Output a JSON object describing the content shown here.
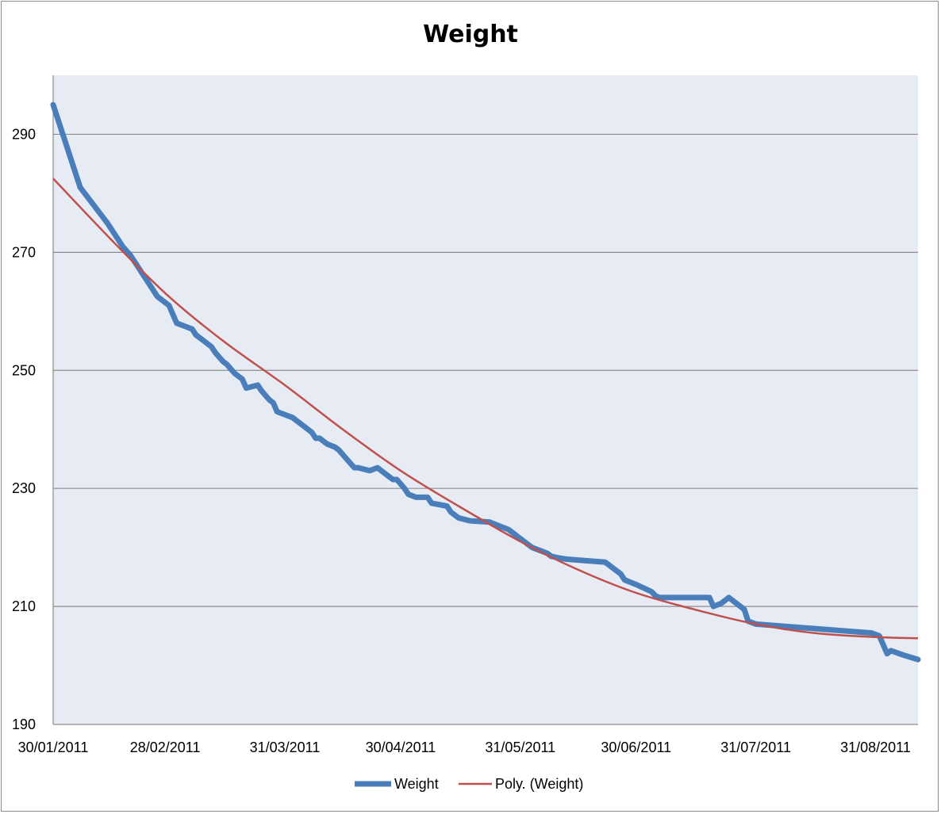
{
  "chart_data": {
    "type": "line",
    "title": "Weight",
    "xlabel": "",
    "ylabel": "",
    "x_tick_labels": [
      "30/01/2011",
      "28/02/2011",
      "31/03/2011",
      "30/04/2011",
      "31/05/2011",
      "30/06/2011",
      "31/07/2011",
      "31/08/2011"
    ],
    "y_tick_labels": [
      "190",
      "210",
      "230",
      "250",
      "270",
      "290"
    ],
    "ylim": [
      190,
      300
    ],
    "xlim": [
      "2011-01-30",
      "2011-09-11"
    ],
    "grid": "horizontal",
    "legend_position": "bottom",
    "colors": {
      "weight": "#4a7ebb",
      "trend": "#c0504d",
      "plot_bg": "#e7ecf4",
      "gridline": "#8c8c8c"
    },
    "series": [
      {
        "name": "Weight",
        "x": [
          "2011-01-30",
          "2011-02-06",
          "2011-02-13",
          "2011-02-15",
          "2011-02-17",
          "2011-02-19",
          "2011-02-21",
          "2011-02-22",
          "2011-02-24",
          "2011-02-26",
          "2011-02-27",
          "2011-03-01",
          "2011-03-03",
          "2011-03-05",
          "2011-03-07",
          "2011-03-08",
          "2011-03-10",
          "2011-03-12",
          "2011-03-13",
          "2011-03-15",
          "2011-03-16",
          "2011-03-18",
          "2011-03-20",
          "2011-03-21",
          "2011-03-24",
          "2011-03-25",
          "2011-03-27",
          "2011-03-28",
          "2011-03-29",
          "2011-03-31",
          "2011-04-02",
          "2011-04-03",
          "2011-04-05",
          "2011-04-07",
          "2011-04-08",
          "2011-04-09",
          "2011-04-10",
          "2011-04-11",
          "2011-04-13",
          "2011-04-14",
          "2011-04-16",
          "2011-04-18",
          "2011-04-19",
          "2011-04-22",
          "2011-04-24",
          "2011-04-26",
          "2011-04-27",
          "2011-04-28",
          "2011-04-29",
          "2011-05-01",
          "2011-05-02",
          "2011-05-04",
          "2011-05-07",
          "2011-05-08",
          "2011-05-12",
          "2011-05-13",
          "2011-05-15",
          "2011-05-18",
          "2011-05-23",
          "2011-05-28",
          "2011-05-31",
          "2011-06-02",
          "2011-06-03",
          "2011-06-05",
          "2011-06-07",
          "2011-06-08",
          "2011-06-10",
          "2011-06-12",
          "2011-06-22",
          "2011-06-26",
          "2011-06-27",
          "2011-06-30",
          "2011-07-04",
          "2011-07-05",
          "2011-07-06",
          "2011-07-19",
          "2011-07-20",
          "2011-07-22",
          "2011-07-24",
          "2011-07-28",
          "2011-07-29",
          "2011-07-31",
          "2011-08-30",
          "2011-09-01",
          "2011-09-02",
          "2011-09-03",
          "2011-09-04",
          "2011-09-07",
          "2011-09-11"
        ],
        "values": [
          295,
          281,
          275,
          273,
          271,
          269.5,
          267.5,
          266.5,
          264.5,
          262.5,
          262,
          261,
          258,
          257.5,
          257,
          256,
          255,
          254,
          253,
          251.5,
          251,
          249.5,
          248.5,
          247,
          247.5,
          246.5,
          245,
          244.5,
          243,
          242.5,
          242,
          241.5,
          240.5,
          239.5,
          238.5,
          238.5,
          238,
          237.5,
          237,
          236.5,
          235,
          233.5,
          233.5,
          233,
          233.5,
          232.5,
          232,
          231.5,
          231.5,
          230,
          229,
          228.5,
          228.5,
          227.5,
          227,
          226,
          225,
          224.5,
          224.3,
          223,
          221.5,
          220.5,
          220,
          219.5,
          219,
          218.5,
          218.2,
          218,
          217.5,
          215.5,
          214.5,
          213.7,
          212.5,
          211.8,
          211.5,
          211.5,
          210,
          210.5,
          211.5,
          209.5,
          207.5,
          207,
          205.5,
          205,
          203.5,
          202,
          202.5,
          201.8,
          201
        ]
      },
      {
        "name": "Poly. (Weight)",
        "x": [
          "2011-01-30",
          "2011-02-15",
          "2011-03-01",
          "2011-03-15",
          "2011-03-31",
          "2011-04-15",
          "2011-04-30",
          "2011-05-15",
          "2011-05-31",
          "2011-06-15",
          "2011-06-30",
          "2011-07-15",
          "2011-07-31",
          "2011-08-15",
          "2011-08-31",
          "2011-09-11"
        ],
        "values": [
          282.5,
          271.5,
          262.5,
          255,
          247.5,
          240,
          233,
          227,
          221,
          216.2,
          212.3,
          209.5,
          207,
          205.5,
          204.8,
          204.6
        ]
      }
    ]
  }
}
